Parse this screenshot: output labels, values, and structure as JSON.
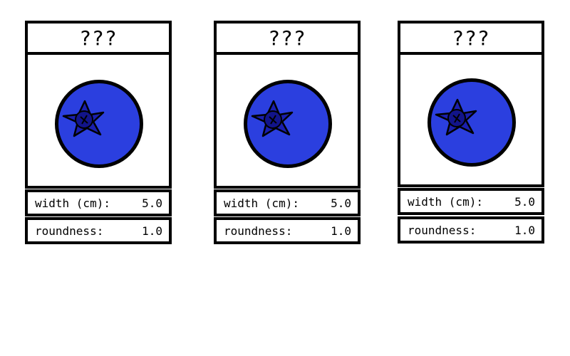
{
  "cards": [
    {
      "name": "???",
      "fruit": "blueberry",
      "fruit_color": "#2b3fdf",
      "calyx_color": "#1a1fae",
      "stats": [
        {
          "label": "width (cm):",
          "value": "5.0"
        },
        {
          "label": "roundness:",
          "value": "1.0"
        }
      ]
    },
    {
      "name": "???",
      "fruit": "blueberry",
      "fruit_color": "#2b3fdf",
      "calyx_color": "#1a1fae",
      "stats": [
        {
          "label": "width (cm):",
          "value": "5.0"
        },
        {
          "label": "roundness:",
          "value": "1.0"
        }
      ]
    },
    {
      "name": "???",
      "fruit": "blueberry",
      "fruit_color": "#2b3fdf",
      "calyx_color": "#1a1fae",
      "stats": [
        {
          "label": "width (cm):",
          "value": "5.0"
        },
        {
          "label": "roundness:",
          "value": "1.0"
        }
      ]
    }
  ]
}
